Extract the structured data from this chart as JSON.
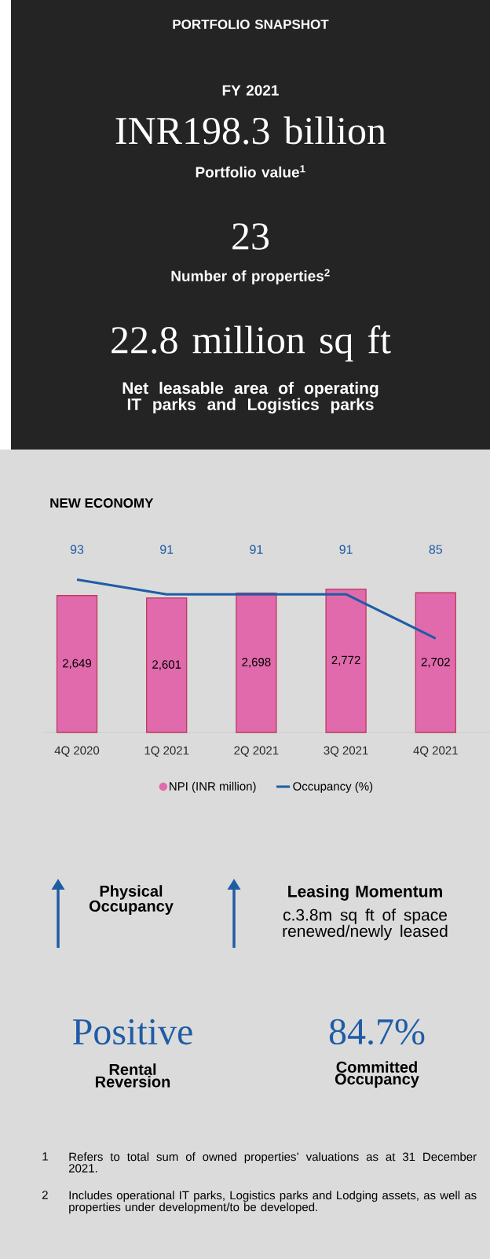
{
  "chart_data": [
    {
      "type": "other",
      "title": "PORTFOLIO SNAPSHOT",
      "subtitle": "FY 2021",
      "annotations": [
        "INR198.3 billion",
        "Portfolio value$^{1}$",
        "23",
        "Number of properties$^{2}$",
        "22.8 million sq ft",
        "Net leasable area of operating IT parks and Logistics parks"
      ]
    },
    {
      "type": "bar",
      "title": "NEW ECONOMY",
      "categories": [
        "4Q 2020",
        "1Q 2021",
        "2Q 2021",
        "3Q 2021",
        "4Q 2021"
      ],
      "series": [
        {
          "name": "NPI (INR million)",
          "type": "bar",
          "color": "#e06aab",
          "values": [
            2649,
            2601,
            2698,
            2772,
            2702
          ],
          "value_labels": [
            "2,649",
            "2,601",
            "2,698",
            "2,772",
            "2,702"
          ]
        },
        {
          "name": "Occupancy (%)",
          "type": "line",
          "axis": "y2",
          "color": "#1f5ca6",
          "values": [
            93,
            91,
            91,
            91,
            85
          ],
          "value_labels": [
            "93",
            "91",
            "91",
            "91",
            "85"
          ]
        }
      ],
      "legend": "bottom",
      "tick_labels": "x"
    },
    {
      "type": "other",
      "annotations": [
        "Physical Occupancy",
        "Leasing Momentum",
        "c.3.8m sq ft of space renewed/newly leased",
        "Positive",
        "Rental Reversion",
        "84.7%",
        "Committed Occupancy",
        "1",
        "Refers to total sum of owned properties’ valuations as at 31 December 2021.",
        "2",
        "Includes operational IT parks, Logistics parks and Lodging assets, as well as properties under development/to be developed."
      ]
    }
  ]
}
